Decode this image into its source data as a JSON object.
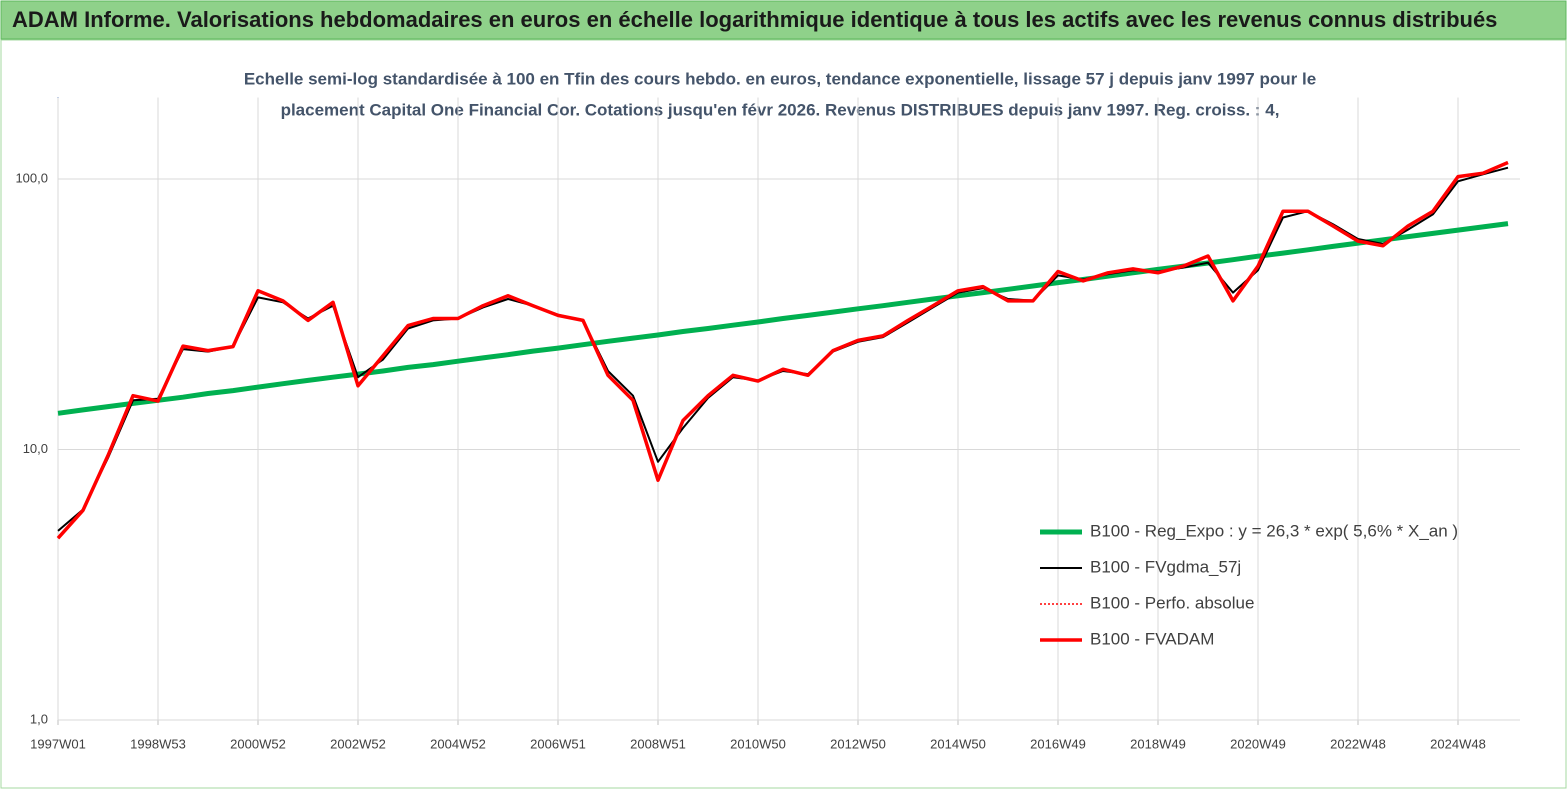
{
  "chart_data": {
    "type": "line",
    "title": "ADAM Informe. Valorisations hebdomadaires en euros en échelle logarithmique identique à tous les actifs avec les revenus connus distribués",
    "subtitle": [
      "Echelle semi-log standardisée à 100 en Tfin des cours hebdo. en euros, tendance exponentielle, lissage 57 j depuis janv 1997 pour le",
      "placement Capital One Financial Cor. Cotations jusqu'en févr 2026. Revenus DISTRIBUES depuis janv 1997. Reg. croiss. : 4,"
    ],
    "categories": [
      "1997W01",
      null,
      null,
      null,
      "1998W53",
      null,
      null,
      null,
      "2000W52",
      null,
      null,
      null,
      "2002W52",
      null,
      null,
      null,
      "2004W52",
      null,
      null,
      null,
      "2006W51",
      null,
      null,
      null,
      "2008W51",
      null,
      null,
      null,
      "2010W50",
      null,
      null,
      null,
      "2012W50",
      null,
      null,
      null,
      "2014W50",
      null,
      null,
      null,
      "2016W49",
      null,
      null,
      null,
      "2018W49",
      null,
      null,
      null,
      "2020W49",
      null,
      null,
      null,
      "2022W48",
      null,
      null,
      null,
      "2024W48",
      null,
      null
    ],
    "ylim": [
      1,
      200
    ],
    "log_scale": true,
    "yticks": [
      {
        "value": 1,
        "label": "1,0"
      },
      {
        "value": 10,
        "label": "10,0"
      },
      {
        "value": 100,
        "label": "100,0"
      }
    ],
    "grid": true,
    "legend": "right",
    "series": [
      {
        "name": "B100 - Reg_Expo : y = 26,3 *  exp( 5,6% *  X_an )",
        "color": "#00b050",
        "width": 5,
        "dash": "none",
        "values": [
          13.6,
          14.0,
          14.4,
          14.8,
          15.2,
          15.6,
          16.1,
          16.5,
          17.0,
          17.5,
          18.0,
          18.5,
          19.0,
          19.5,
          20.1,
          20.6,
          21.2,
          21.8,
          22.4,
          23.1,
          23.7,
          24.4,
          25.1,
          25.8,
          26.5,
          27.3,
          28.0,
          28.8,
          29.6,
          30.5,
          31.3,
          32.2,
          33.1,
          34.0,
          35.0,
          36.0,
          37.0,
          38.0,
          39.1,
          40.2,
          41.4,
          42.5,
          43.7,
          45.0,
          46.3,
          47.6,
          48.9,
          50.3,
          51.8,
          53.2,
          54.7,
          56.3,
          57.9,
          59.5,
          61.2,
          62.9,
          64.7,
          66.5,
          68.4
        ]
      },
      {
        "name": "B100 - FVgdma_57j",
        "color": "#000000",
        "width": 2,
        "dash": "none",
        "values": [
          5.0,
          6.0,
          9.3,
          15.2,
          15.4,
          23.5,
          23.0,
          24.0,
          36.5,
          35.0,
          30.5,
          34.0,
          18.5,
          21.5,
          28.0,
          30.0,
          30.5,
          33.5,
          36.0,
          34.0,
          31.5,
          30.0,
          19.5,
          15.8,
          9.0,
          12.0,
          15.5,
          18.5,
          18.0,
          19.5,
          19.0,
          23.0,
          25.0,
          26.0,
          29.5,
          33.5,
          38.0,
          39.5,
          36.0,
          35.5,
          44.0,
          42.5,
          44.5,
          46.0,
          45.5,
          47.0,
          49.0,
          38.0,
          46.0,
          72.0,
          76.0,
          68.0,
          60.0,
          57.5,
          65.0,
          74.0,
          98.0,
          104.0,
          110.0
        ]
      },
      {
        "name": "B100 - Perfo. absolue",
        "color": "#ff0000",
        "width": 1.5,
        "dash": "2 2",
        "values": [
          4.7,
          5.96,
          9.5,
          15.8,
          15.1,
          24.1,
          23.2,
          24,
          38.6,
          35.4,
          30,
          35,
          17.2,
          22.2,
          28.7,
          30.5,
          30.5,
          34,
          37,
          34,
          31.3,
          30,
          18.8,
          15.2,
          7.7,
          12.8,
          15.8,
          18.8,
          17.9,
          19.8,
          18.8,
          23.2,
          25.3,
          26.3,
          30,
          34,
          38.6,
          40,
          35.4,
          35.4,
          45.5,
          42,
          45,
          46.5,
          45,
          47.6,
          51.9,
          35.4,
          47.6,
          76,
          76,
          67,
          58.9,
          56.6,
          67,
          76,
          102,
          105,
          115
        ]
      },
      {
        "name": "B100 - FVADAM",
        "color": "#ff0000",
        "width": 3.5,
        "dash": "none",
        "values": [
          4.7,
          5.96,
          9.5,
          15.8,
          15.1,
          24.1,
          23.2,
          24,
          38.6,
          35.4,
          30,
          35,
          17.2,
          22.2,
          28.7,
          30.5,
          30.5,
          34,
          37,
          34,
          31.3,
          30,
          18.8,
          15.2,
          7.7,
          12.8,
          15.8,
          18.8,
          17.9,
          19.8,
          18.8,
          23.2,
          25.3,
          26.3,
          30,
          34,
          38.6,
          40,
          35.4,
          35.4,
          45.5,
          42,
          45,
          46.5,
          45,
          47.6,
          51.9,
          35.4,
          47.6,
          76,
          76,
          67,
          58.9,
          56.6,
          67,
          76,
          102,
          105,
          115
        ]
      }
    ]
  }
}
